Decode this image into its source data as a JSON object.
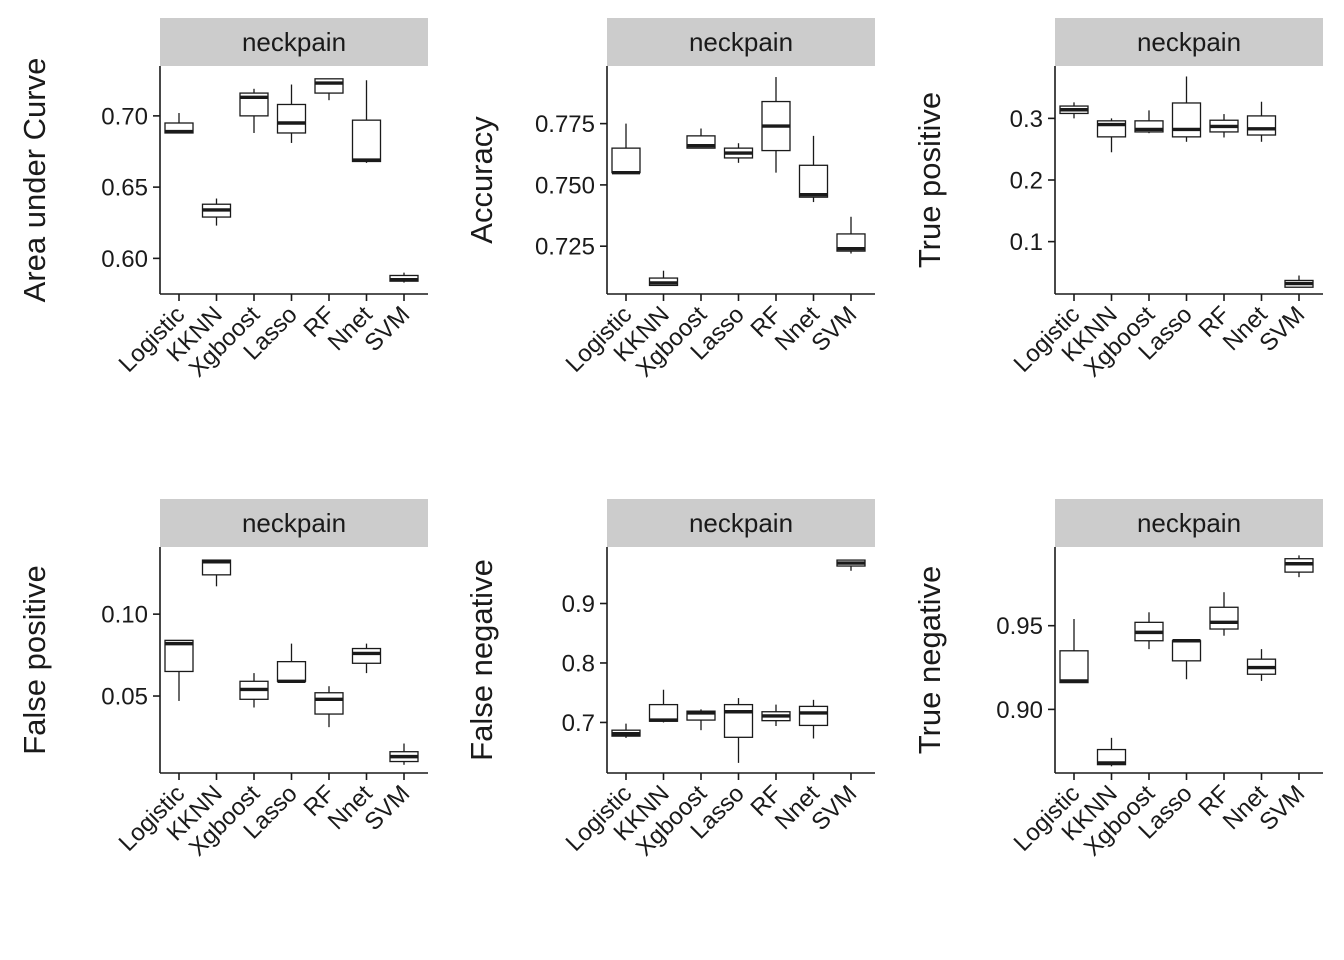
{
  "chart_data": [
    {
      "type": "boxplot",
      "facet_label": "neckpain",
      "ylabel": "Area under Curve",
      "categories": [
        "Logistic",
        "KKNN",
        "Xgboost",
        "Lasso",
        "RF",
        "Nnet",
        "SVM"
      ],
      "ylim": [
        0.575,
        0.735
      ],
      "yticks": [
        0.6,
        0.65,
        0.7
      ],
      "ytick_labels": [
        "0.60",
        "0.65",
        "0.70"
      ],
      "boxes": [
        {
          "min": 0.688,
          "q1": 0.688,
          "median": 0.689,
          "q3": 0.695,
          "max": 0.702
        },
        {
          "min": 0.623,
          "q1": 0.629,
          "median": 0.634,
          "q3": 0.638,
          "max": 0.642
        },
        {
          "min": 0.688,
          "q1": 0.7,
          "median": 0.713,
          "q3": 0.716,
          "max": 0.719
        },
        {
          "min": 0.681,
          "q1": 0.688,
          "median": 0.695,
          "q3": 0.708,
          "max": 0.722
        },
        {
          "min": 0.711,
          "q1": 0.716,
          "median": 0.723,
          "q3": 0.726,
          "max": 0.726
        },
        {
          "min": 0.667,
          "q1": 0.668,
          "median": 0.669,
          "q3": 0.697,
          "max": 0.725
        },
        {
          "min": 0.583,
          "q1": 0.584,
          "median": 0.585,
          "q3": 0.588,
          "max": 0.59
        }
      ]
    },
    {
      "type": "boxplot",
      "facet_label": "neckpain",
      "ylabel": "Accuracy",
      "categories": [
        "Logistic",
        "KKNN",
        "Xgboost",
        "Lasso",
        "RF",
        "Nnet",
        "SVM"
      ],
      "ylim": [
        0.7055,
        0.7985
      ],
      "yticks": [
        0.725,
        0.75,
        0.775
      ],
      "ytick_labels": [
        "0.725",
        "0.750",
        "0.775"
      ],
      "boxes": [
        {
          "min": 0.755,
          "q1": 0.755,
          "median": 0.755,
          "q3": 0.765,
          "max": 0.775
        },
        {
          "min": 0.709,
          "q1": 0.709,
          "median": 0.71,
          "q3": 0.712,
          "max": 0.715
        },
        {
          "min": 0.765,
          "q1": 0.765,
          "median": 0.766,
          "q3": 0.77,
          "max": 0.773
        },
        {
          "min": 0.759,
          "q1": 0.761,
          "median": 0.763,
          "q3": 0.765,
          "max": 0.767
        },
        {
          "min": 0.755,
          "q1": 0.764,
          "median": 0.774,
          "q3": 0.784,
          "max": 0.794
        },
        {
          "min": 0.743,
          "q1": 0.745,
          "median": 0.746,
          "q3": 0.758,
          "max": 0.77
        },
        {
          "min": 0.722,
          "q1": 0.723,
          "median": 0.724,
          "q3": 0.73,
          "max": 0.737
        }
      ]
    },
    {
      "type": "boxplot",
      "facet_label": "neckpain",
      "ylabel": "True positive",
      "categories": [
        "Logistic",
        "KKNN",
        "Xgboost",
        "Lasso",
        "RF",
        "Nnet",
        "SVM"
      ],
      "ylim": [
        0.015,
        0.385
      ],
      "yticks": [
        0.1,
        0.2,
        0.3
      ],
      "ytick_labels": [
        "0.1",
        "0.2",
        "0.3"
      ],
      "boxes": [
        {
          "min": 0.3,
          "q1": 0.308,
          "median": 0.314,
          "q3": 0.32,
          "max": 0.326
        },
        {
          "min": 0.245,
          "q1": 0.27,
          "median": 0.29,
          "q3": 0.296,
          "max": 0.3
        },
        {
          "min": 0.276,
          "q1": 0.278,
          "median": 0.282,
          "q3": 0.296,
          "max": 0.313
        },
        {
          "min": 0.262,
          "q1": 0.27,
          "median": 0.282,
          "q3": 0.325,
          "max": 0.368
        },
        {
          "min": 0.269,
          "q1": 0.278,
          "median": 0.287,
          "q3": 0.297,
          "max": 0.307
        },
        {
          "min": 0.262,
          "q1": 0.273,
          "median": 0.283,
          "q3": 0.304,
          "max": 0.327
        },
        {
          "min": 0.026,
          "q1": 0.026,
          "median": 0.032,
          "q3": 0.037,
          "max": 0.045
        }
      ]
    },
    {
      "type": "boxplot",
      "facet_label": "neckpain",
      "ylabel": "False positive",
      "categories": [
        "Logistic",
        "KKNN",
        "Xgboost",
        "Lasso",
        "RF",
        "Nnet",
        "SVM"
      ],
      "ylim": [
        0.003,
        0.141
      ],
      "yticks": [
        0.05,
        0.1
      ],
      "ytick_labels": [
        "0.05",
        "0.10"
      ],
      "boxes": [
        {
          "min": 0.047,
          "q1": 0.065,
          "median": 0.082,
          "q3": 0.084,
          "max": 0.084
        },
        {
          "min": 0.117,
          "q1": 0.124,
          "median": 0.132,
          "q3": 0.133,
          "max": 0.133
        },
        {
          "min": 0.043,
          "q1": 0.048,
          "median": 0.054,
          "q3": 0.059,
          "max": 0.064
        },
        {
          "min": 0.059,
          "q1": 0.059,
          "median": 0.059,
          "q3": 0.071,
          "max": 0.082
        },
        {
          "min": 0.031,
          "q1": 0.039,
          "median": 0.048,
          "q3": 0.052,
          "max": 0.056
        },
        {
          "min": 0.064,
          "q1": 0.07,
          "median": 0.076,
          "q3": 0.079,
          "max": 0.082
        },
        {
          "min": 0.008,
          "q1": 0.01,
          "median": 0.013,
          "q3": 0.016,
          "max": 0.021
        }
      ]
    },
    {
      "type": "boxplot",
      "facet_label": "neckpain",
      "ylabel": "False negative",
      "categories": [
        "Logistic",
        "KKNN",
        "Xgboost",
        "Lasso",
        "RF",
        "Nnet",
        "SVM"
      ],
      "ylim": [
        0.615,
        0.995
      ],
      "yticks": [
        0.7,
        0.8,
        0.9
      ],
      "ytick_labels": [
        "0.7",
        "0.8",
        "0.9"
      ],
      "boxes": [
        {
          "min": 0.674,
          "q1": 0.677,
          "median": 0.681,
          "q3": 0.687,
          "max": 0.698
        },
        {
          "min": 0.7,
          "q1": 0.702,
          "median": 0.704,
          "q3": 0.73,
          "max": 0.755
        },
        {
          "min": 0.687,
          "q1": 0.704,
          "median": 0.716,
          "q3": 0.719,
          "max": 0.722
        },
        {
          "min": 0.632,
          "q1": 0.675,
          "median": 0.718,
          "q3": 0.73,
          "max": 0.741
        },
        {
          "min": 0.694,
          "q1": 0.703,
          "median": 0.711,
          "q3": 0.718,
          "max": 0.73
        },
        {
          "min": 0.673,
          "q1": 0.695,
          "median": 0.716,
          "q3": 0.727,
          "max": 0.738
        },
        {
          "min": 0.955,
          "q1": 0.963,
          "median": 0.968,
          "q3": 0.973,
          "max": 0.973
        }
      ]
    },
    {
      "type": "boxplot",
      "facet_label": "neckpain",
      "ylabel": "True negative",
      "categories": [
        "Logistic",
        "KKNN",
        "Xgboost",
        "Lasso",
        "RF",
        "Nnet",
        "SVM"
      ],
      "ylim": [
        0.862,
        0.997
      ],
      "yticks": [
        0.9,
        0.95
      ],
      "ytick_labels": [
        "0.90",
        "0.95"
      ],
      "boxes": [
        {
          "min": 0.916,
          "q1": 0.916,
          "median": 0.917,
          "q3": 0.935,
          "max": 0.954
        },
        {
          "min": 0.866,
          "q1": 0.867,
          "median": 0.868,
          "q3": 0.876,
          "max": 0.883
        },
        {
          "min": 0.936,
          "q1": 0.941,
          "median": 0.946,
          "q3": 0.952,
          "max": 0.958
        },
        {
          "min": 0.918,
          "q1": 0.929,
          "median": 0.941,
          "q3": 0.941,
          "max": 0.941
        },
        {
          "min": 0.944,
          "q1": 0.948,
          "median": 0.952,
          "q3": 0.961,
          "max": 0.97
        },
        {
          "min": 0.917,
          "q1": 0.921,
          "median": 0.925,
          "q3": 0.93,
          "max": 0.936
        },
        {
          "min": 0.979,
          "q1": 0.982,
          "median": 0.987,
          "q3": 0.99,
          "max": 0.992
        }
      ]
    }
  ],
  "colors": {
    "strip_fill": "#cccccc",
    "ink": "#1a1a1a",
    "box_fill": "#ffffff"
  }
}
